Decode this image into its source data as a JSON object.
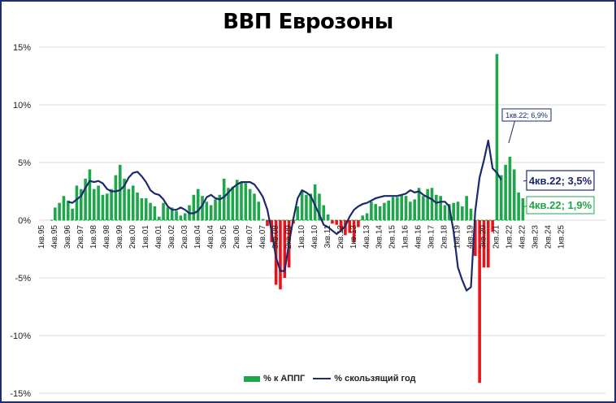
{
  "chart_data": {
    "type": "bar+line",
    "title": "ВВП Еврозоны",
    "xlabel": "",
    "ylabel": "",
    "ylim": [
      -15,
      15
    ],
    "yticks": [
      "15%",
      "10%",
      "5%",
      "0%",
      "-5%",
      "-10%",
      "-15%"
    ],
    "xtick_labels": [
      "1кв.95",
      "4кв.95",
      "3кв.96",
      "2кв.97",
      "1кв.98",
      "4кв.98",
      "3кв.99",
      "2кв.00",
      "1кв.01",
      "4кв.01",
      "3кв.02",
      "2кв.03",
      "1кв.04",
      "4кв.04",
      "3кв.05",
      "2кв.06",
      "1кв.07",
      "4кв.07",
      "3кв.08",
      "2кв.09",
      "1кв.10",
      "4кв.10",
      "3кв.11",
      "2кв.12",
      "1кв.13",
      "4кв.13",
      "3кв.14",
      "2кв.15",
      "1кв.16",
      "4кв.16",
      "3кв.17",
      "2кв.18",
      "1кв.19",
      "4кв.19",
      "3кв.20",
      "2кв.21",
      "1кв.22",
      "4кв.22",
      "3кв.23",
      "2кв.24",
      "1кв.25"
    ],
    "grid": true,
    "legend_position": "bottom",
    "series": [
      {
        "name": "% к АППГ",
        "type": "bar",
        "color_positive": "#1fa64a",
        "color_negative": "#e8141b",
        "start": "1кв.95",
        "values": [
          1.1,
          1.5,
          2.1,
          1.7,
          1.0,
          3.0,
          2.7,
          3.6,
          4.4,
          2.7,
          3.0,
          2.2,
          2.3,
          2.7,
          3.9,
          4.8,
          3.6,
          2.7,
          3.0,
          2.4,
          1.9,
          1.9,
          1.5,
          1.2,
          0.3,
          1.5,
          1.1,
          1.1,
          0.8,
          0.4,
          0.6,
          1.3,
          2.2,
          2.7,
          2.1,
          1.6,
          1.3,
          1.8,
          2.2,
          3.6,
          2.8,
          2.9,
          3.5,
          3.3,
          3.2,
          2.7,
          2.3,
          1.6,
          0.1,
          -0.5,
          -1.9,
          -5.6,
          -6.0,
          -5.0,
          -4.1,
          -0.3,
          1.2,
          2.5,
          2.2,
          2.3,
          3.1,
          2.3,
          1.3,
          0.5,
          -0.3,
          -0.4,
          -0.9,
          -1.3,
          -1.1,
          -1.9,
          -0.6,
          0.4,
          0.6,
          1.6,
          1.4,
          1.2,
          1.5,
          1.7,
          2.0,
          2.0,
          2.2,
          2.1,
          1.6,
          1.8,
          2.8,
          2.1,
          2.7,
          2.8,
          2.2,
          2.1,
          1.3,
          1.4,
          1.5,
          1.6,
          1.2,
          2.1,
          1.0,
          -3.1,
          -14.1,
          -4.1,
          -4.1,
          -1.0,
          14.4,
          3.9,
          4.8,
          5.5,
          4.4,
          2.4,
          1.9
        ]
      },
      {
        "name": "% скользящий год",
        "type": "line",
        "color": "#1a2a6c",
        "start": "4кв.95",
        "values": [
          1.6,
          1.5,
          1.8,
          2.1,
          2.8,
          3.4,
          3.3,
          3.4,
          3.2,
          2.7,
          2.5,
          2.5,
          2.6,
          3.0,
          3.7,
          4.1,
          4.2,
          3.8,
          3.3,
          2.6,
          2.3,
          2.2,
          1.8,
          1.2,
          0.9,
          0.9,
          1.1,
          0.9,
          0.6,
          0.6,
          0.8,
          1.3,
          2.0,
          2.2,
          1.9,
          1.8,
          2.0,
          2.4,
          2.8,
          3.1,
          3.3,
          3.3,
          3.3,
          3.1,
          2.6,
          2.0,
          0.9,
          -1.0,
          -3.2,
          -4.4,
          -4.4,
          -2.0,
          0.1,
          1.9,
          2.6,
          2.4,
          2.1,
          1.3,
          0.5,
          -0.4,
          -0.6,
          -0.9,
          -1.2,
          -0.9,
          -0.5,
          0.3,
          0.9,
          1.2,
          1.4,
          1.5,
          1.7,
          1.9,
          2.0,
          2.1,
          2.1,
          2.1,
          2.1,
          2.2,
          2.3,
          2.6,
          2.4,
          2.5,
          2.2,
          2.0,
          1.8,
          1.5,
          1.6,
          1.6,
          1.2,
          -1.0,
          -4.1,
          -5.2,
          -6.1,
          -5.8,
          0.8,
          3.7,
          5.2,
          6.9,
          4.5,
          4.1,
          3.5
        ]
      }
    ],
    "annotations": [
      {
        "text": "1кв.22; 6,9%",
        "series": "% скользящий год",
        "color": "#1a2a6c"
      },
      {
        "text": "4кв.22; 3,5%",
        "series": "% скользящий год",
        "color": "#1a2a6c"
      },
      {
        "text": "4кв.22; 1,9%",
        "series": "% к АППГ",
        "color": "#1fa64a"
      }
    ]
  },
  "title": "ВВП Еврозоны",
  "legend": {
    "bar_label": "% к АППГ",
    "line_label": "% скользящий год"
  }
}
